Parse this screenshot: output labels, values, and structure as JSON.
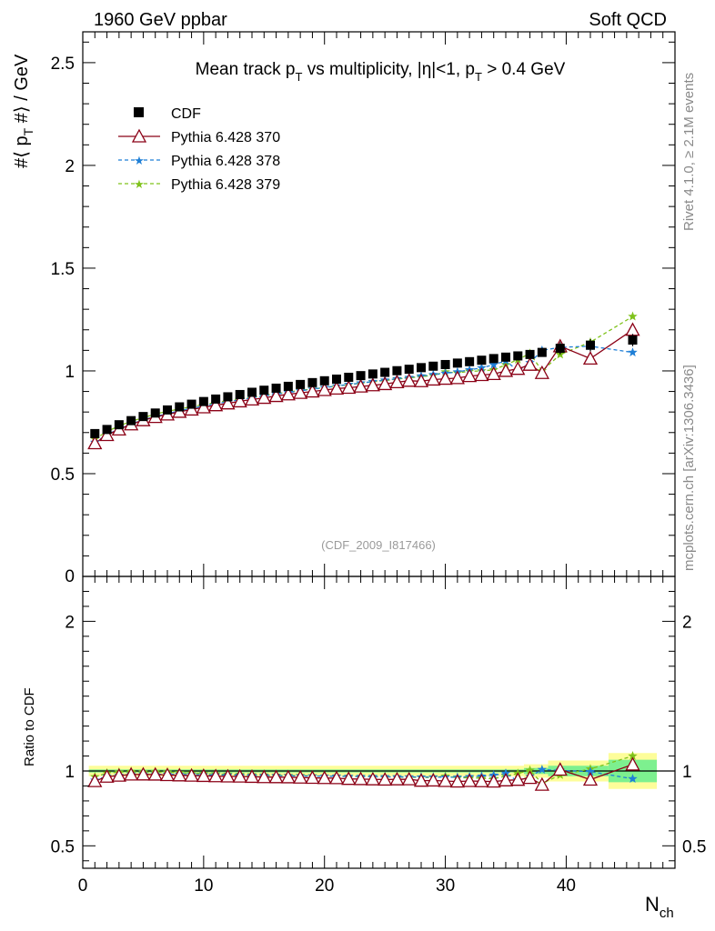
{
  "header": {
    "left": "1960 GeV ppbar",
    "right": "Soft QCD"
  },
  "side_labels": {
    "top": "Rivet 4.1.0, ≥ 2.1M events",
    "bottom": "mcplots.cern.ch [arXiv:1306.3436]"
  },
  "chart_data": {
    "type": "scatter",
    "title": "Mean track p_T vs multiplicity, |η|<1, p_T > 0.4 GeV",
    "title_parts": {
      "a": "Mean track p",
      "sub1": "T",
      "b": " vs multiplicity, |η|<1, p",
      "sub2": "T",
      "c": " > 0.4 GeV"
    },
    "ylabel": "#⟨ p_T #⟩ / GeV",
    "ylabel_parts": {
      "a": "#⟨ p",
      "sub": "T",
      "b": " #⟩ / GeV"
    },
    "xlabel": "N_ch",
    "xlabel_parts": {
      "a": "N",
      "sub": "ch"
    },
    "ratio_ylabel": "Ratio to CDF",
    "analysis": "(CDF_2009_I817466)",
    "xlim": [
      0,
      49
    ],
    "ylim": [
      0,
      2.65
    ],
    "ratio_ylim": [
      0.35,
      2.3
    ],
    "x_ticks": [
      0,
      10,
      20,
      30,
      40
    ],
    "y_ticks": [
      0.5,
      1,
      1.5,
      2,
      2.5
    ],
    "ratio_ticks": [
      0.5,
      1,
      2
    ],
    "x": [
      1,
      2,
      3,
      4,
      5,
      6,
      7,
      8,
      9,
      10,
      11,
      12,
      13,
      14,
      15,
      16,
      17,
      18,
      19,
      20,
      21,
      22,
      23,
      24,
      25,
      26,
      27,
      28,
      29,
      30,
      31,
      32,
      33,
      34,
      35,
      36,
      37,
      38,
      39.5,
      42,
      45.5
    ],
    "band": [
      {
        "x0": 0.5,
        "x1": 36.5,
        "stat": 0.01,
        "tot": 0.035
      },
      {
        "x0": 36.5,
        "x1": 38.5,
        "stat": 0.02,
        "tot": 0.045
      },
      {
        "x0": 38.5,
        "x1": 43.5,
        "stat": 0.035,
        "tot": 0.07
      },
      {
        "x0": 43.5,
        "x1": 47.5,
        "stat": 0.075,
        "tot": 0.12
      }
    ],
    "series": [
      {
        "name": "CDF",
        "color": "#000000",
        "marker": "square",
        "values": [
          0.695,
          0.715,
          0.738,
          0.758,
          0.778,
          0.795,
          0.81,
          0.825,
          0.838,
          0.851,
          0.863,
          0.874,
          0.885,
          0.896,
          0.906,
          0.916,
          0.925,
          0.934,
          0.943,
          0.952,
          0.96,
          0.969,
          0.977,
          0.985,
          0.993,
          1.001,
          1.008,
          1.016,
          1.023,
          1.031,
          1.038,
          1.045,
          1.052,
          1.06,
          1.067,
          1.073,
          1.08,
          1.09,
          1.11,
          1.125,
          1.15
        ]
      },
      {
        "name": "Pythia 6.428 370",
        "color": "#8b0016",
        "marker": "triangle",
        "dash": "",
        "values": [
          0.648,
          0.688,
          0.715,
          0.74,
          0.76,
          0.776,
          0.788,
          0.801,
          0.812,
          0.823,
          0.833,
          0.842,
          0.852,
          0.861,
          0.869,
          0.878,
          0.886,
          0.893,
          0.9,
          0.907,
          0.914,
          0.918,
          0.924,
          0.93,
          0.936,
          0.945,
          0.952,
          0.95,
          0.958,
          0.962,
          0.965,
          0.975,
          0.98,
          0.985,
          1.0,
          1.01,
          1.03,
          0.99,
          1.12,
          1.06,
          1.2
        ]
      },
      {
        "name": "Pythia 6.428 378",
        "color": "#1f7fd6",
        "marker": "star",
        "dash": "4,3",
        "values": [
          0.652,
          0.69,
          0.717,
          0.742,
          0.762,
          0.778,
          0.792,
          0.806,
          0.818,
          0.829,
          0.84,
          0.85,
          0.86,
          0.869,
          0.878,
          0.887,
          0.895,
          0.903,
          0.911,
          0.919,
          0.927,
          0.934,
          0.941,
          0.948,
          0.955,
          0.962,
          0.968,
          0.975,
          0.982,
          0.988,
          0.995,
          1.005,
          1.015,
          1.03,
          1.05,
          1.0,
          1.04,
          1.1,
          1.115,
          1.12,
          1.09
        ]
      },
      {
        "name": "Pythia 6.428 379",
        "color": "#7fc21b",
        "marker": "star",
        "dash": "4,3",
        "values": [
          0.668,
          0.705,
          0.732,
          0.755,
          0.772,
          0.79,
          0.803,
          0.815,
          0.826,
          0.836,
          0.846,
          0.855,
          0.864,
          0.873,
          0.881,
          0.889,
          0.897,
          0.905,
          0.912,
          0.919,
          0.926,
          0.933,
          0.94,
          0.947,
          0.953,
          0.96,
          0.966,
          0.972,
          0.978,
          0.995,
          0.99,
          0.998,
          1.0,
          1.005,
          1.03,
          1.055,
          1.085,
          1.0,
          1.08,
          1.14,
          1.265
        ]
      }
    ]
  }
}
